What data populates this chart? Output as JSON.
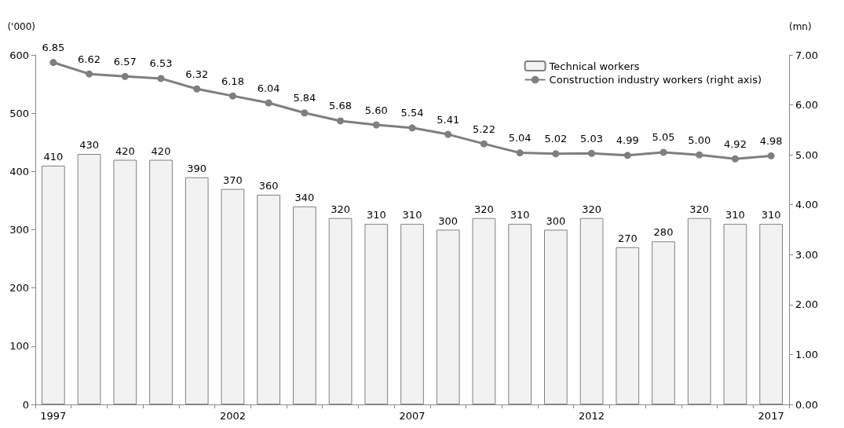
{
  "chart_data": {
    "type": "bar",
    "ylabel": "('000)",
    "y2label": "(mn)",
    "categories": [
      "1997",
      null,
      null,
      null,
      null,
      "2002",
      null,
      null,
      null,
      null,
      "2007",
      null,
      null,
      null,
      null,
      "2012",
      null,
      null,
      null,
      null,
      "2017"
    ],
    "series": [
      {
        "name": "Technical workers",
        "color": "#f2f2f2",
        "values": [
          410,
          430,
          420,
          420,
          390,
          370,
          360,
          340,
          320,
          310,
          310,
          300,
          320,
          310,
          300,
          320,
          270,
          280,
          320,
          310,
          310
        ]
      },
      {
        "name": "Construction industry workers (right axis)",
        "type": "line",
        "axis": "y2",
        "color": "#7f7f7f",
        "marker": "circle",
        "values": [
          6.85,
          6.62,
          6.57,
          6.53,
          6.32,
          6.18,
          6.04,
          5.84,
          5.68,
          5.6,
          5.54,
          5.41,
          5.22,
          5.04,
          5.02,
          5.03,
          4.99,
          5.05,
          5.0,
          4.92,
          4.98
        ],
        "value_labels": [
          "6.85",
          "6.62",
          "6.57",
          "6.53",
          "6.32",
          "6.18",
          "6.04",
          "5.84",
          "5.68",
          "5.60",
          "5.54",
          "5.41",
          "5.22",
          "5.04",
          "5.02",
          "5.03",
          "4.99",
          "5.05",
          "5.00",
          "4.92",
          "4.98"
        ]
      }
    ],
    "ylim": [
      0,
      600
    ],
    "yticks": [
      0,
      100,
      200,
      300,
      400,
      500,
      600
    ],
    "y2lim": [
      0,
      7
    ],
    "y2ticks": [
      {
        "value": 0,
        "label": "0.00"
      },
      {
        "value": 1,
        "label": "1.00"
      },
      {
        "value": 2,
        "label": "2.00"
      },
      {
        "value": 3,
        "label": "3.00"
      },
      {
        "value": 4,
        "label": "4.00"
      },
      {
        "value": 5,
        "label": "5.00"
      },
      {
        "value": 6,
        "label": "6.00"
      },
      {
        "value": 7,
        "label": "7.00"
      }
    ],
    "data_labels": true,
    "legend": "top right",
    "grid": false
  }
}
